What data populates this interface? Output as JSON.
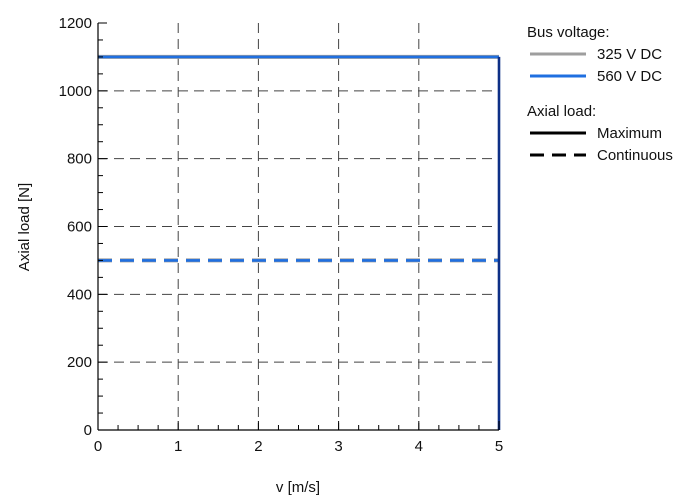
{
  "chart_data": {
    "type": "line",
    "xlabel": "v [m/s]",
    "ylabel": "Axial load [N]",
    "xlim": [
      0,
      5
    ],
    "ylim": [
      0,
      1200
    ],
    "x_ticks": [
      "0",
      "1",
      "2",
      "3",
      "4",
      "5"
    ],
    "y_ticks": [
      "0",
      "200",
      "400",
      "600",
      "800",
      "1000",
      "1200"
    ],
    "grid": "dashed",
    "legend_position": "outside-right",
    "legend": {
      "voltage_title": "Bus voltage:",
      "voltage_items": [
        {
          "label": "325 V DC",
          "color": "#9e9e9e"
        },
        {
          "label": "560 V DC",
          "color": "#1f6fe0"
        }
      ],
      "load_title": "Axial load:",
      "load_items": [
        {
          "label": "Maximum",
          "style": "solid"
        },
        {
          "label": "Continuous",
          "style": "dashed"
        }
      ]
    },
    "series": [
      {
        "voltage": "325 V DC",
        "load": "Maximum",
        "color": "#9e9e9e",
        "dash": "solid",
        "x": [
          0,
          5
        ],
        "y": [
          1100,
          1100
        ]
      },
      {
        "voltage": "325 V DC",
        "load": "Continuous",
        "color": "#9e9e9e",
        "dash": "dashed",
        "x": [
          0,
          5
        ],
        "y": [
          500,
          500
        ]
      },
      {
        "voltage": "560 V DC",
        "load": "Maximum",
        "color": "#1f6fe0",
        "dash": "solid",
        "x": [
          0,
          5
        ],
        "y": [
          1100,
          1100
        ]
      },
      {
        "voltage": "560 V DC",
        "load": "Continuous",
        "color": "#1f6fe0",
        "dash": "dashed",
        "x": [
          0,
          5
        ],
        "y": [
          500,
          500
        ]
      }
    ],
    "vertical_limit": {
      "x": 5,
      "y_range": [
        0,
        1100
      ],
      "color": "#0d2f86"
    }
  }
}
